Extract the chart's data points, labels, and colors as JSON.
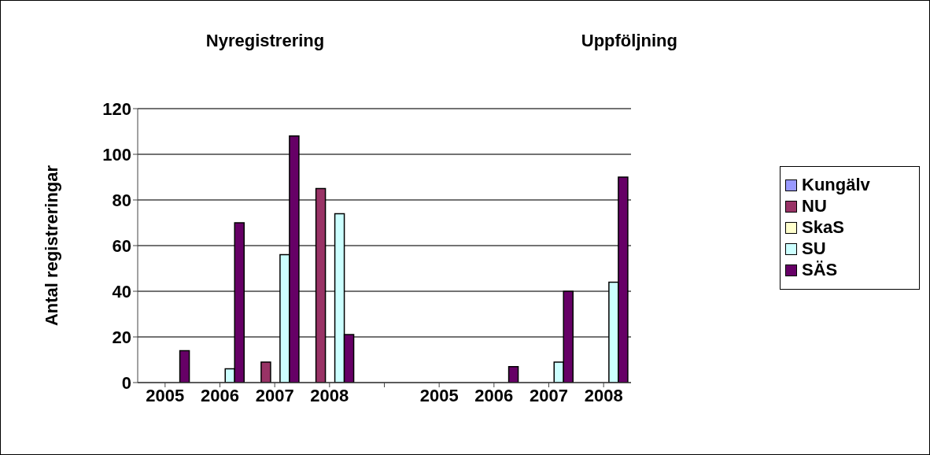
{
  "chart_data": {
    "type": "bar",
    "categories": [
      "2005",
      "2006",
      "2007",
      "2008",
      null,
      "2005",
      "2006",
      "2007",
      "2008"
    ],
    "series": [
      {
        "name": "Kungälv",
        "color": "#9999ff",
        "values": [
          null,
          null,
          null,
          null,
          null,
          null,
          null,
          null,
          null
        ]
      },
      {
        "name": "NU",
        "color": "#993366",
        "values": [
          null,
          null,
          9,
          85,
          null,
          null,
          null,
          null,
          null
        ]
      },
      {
        "name": "SkaS",
        "color": "#ffffcc",
        "values": [
          null,
          null,
          null,
          null,
          null,
          null,
          null,
          null,
          null
        ]
      },
      {
        "name": "SU",
        "color": "#ccffff",
        "values": [
          null,
          6,
          56,
          74,
          null,
          null,
          null,
          9,
          44
        ]
      },
      {
        "name": "SÄS",
        "color": "#660066",
        "values": [
          14,
          70,
          108,
          21,
          null,
          null,
          7,
          40,
          90
        ]
      }
    ],
    "ylabel": "Antal registreringar",
    "ylim": [
      0,
      120
    ],
    "yticks": [
      0,
      20,
      40,
      60,
      80,
      100,
      120
    ],
    "grid": "y",
    "legend": "right",
    "annotations": [
      "Nyregistrering",
      "Uppföljning"
    ]
  }
}
